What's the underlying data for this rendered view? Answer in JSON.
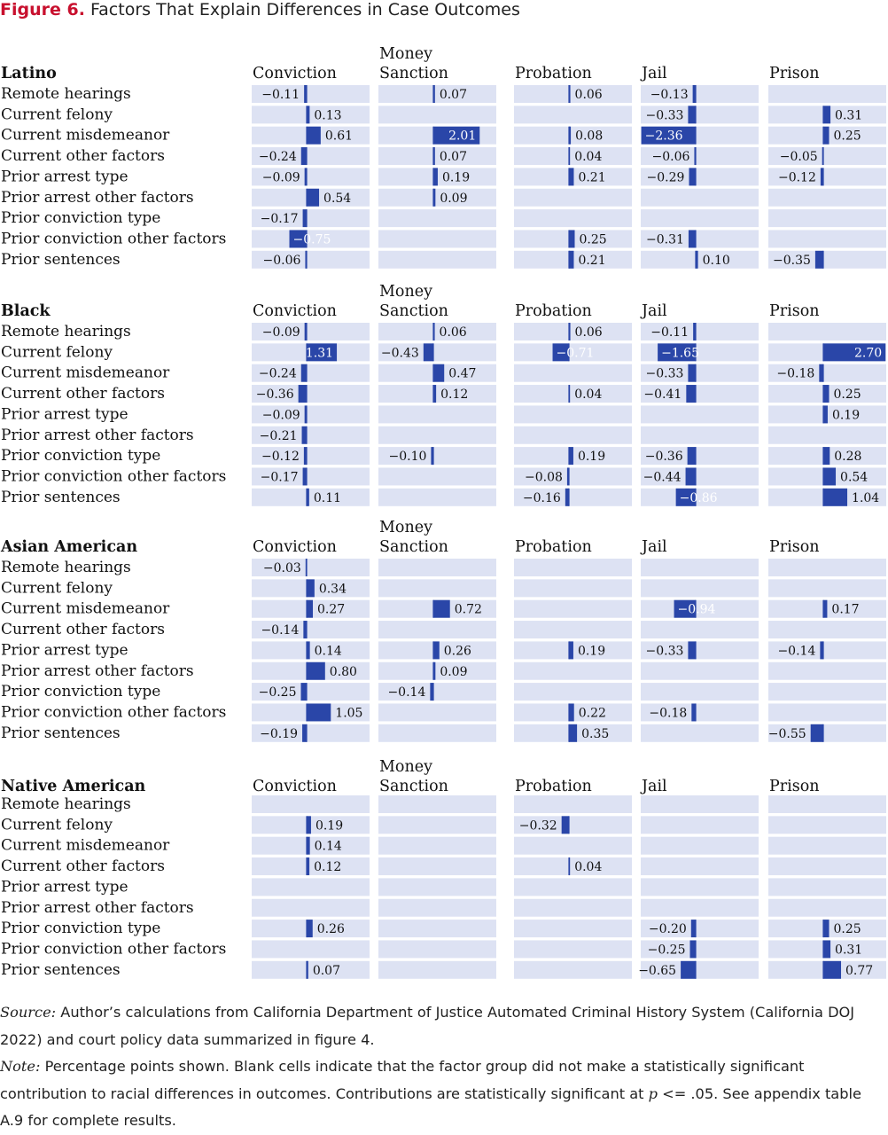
{
  "figure": {
    "label": "Figure 6.",
    "title": "Factors That Explain Differences in Case Outcomes"
  },
  "colors": {
    "bar": "#2a46a8",
    "cell": "#dde2f3",
    "title": "#c8102e",
    "zero_line": "#2a46a8"
  },
  "chart_data": {
    "type": "bar",
    "orientation": "horizontal",
    "units": "percentage points",
    "columns": [
      "Conviction",
      "Money Sanction",
      "Probation",
      "Jail",
      "Prison"
    ],
    "rows": [
      "Remote hearings",
      "Current felony",
      "Current misdemeanor",
      "Current other factors",
      "Prior arrest type",
      "Prior arrest other factors",
      "Prior conviction type",
      "Prior conviction other factors",
      "Prior sentences"
    ],
    "panels": [
      {
        "name": "Latino",
        "values": [
          [
            -0.11,
            0.07,
            0.06,
            -0.13,
            null
          ],
          [
            0.13,
            null,
            null,
            -0.33,
            0.31
          ],
          [
            0.61,
            2.01,
            0.08,
            -2.36,
            0.25
          ],
          [
            -0.24,
            0.07,
            0.04,
            -0.06,
            -0.05
          ],
          [
            -0.09,
            0.19,
            0.21,
            -0.29,
            -0.12
          ],
          [
            0.54,
            0.09,
            null,
            null,
            null
          ],
          [
            -0.17,
            null,
            null,
            null,
            null
          ],
          [
            -0.75,
            null,
            0.25,
            -0.31,
            null
          ],
          [
            -0.06,
            null,
            0.21,
            0.1,
            -0.35
          ]
        ]
      },
      {
        "name": "Black",
        "values": [
          [
            -0.09,
            0.06,
            0.06,
            -0.11,
            null
          ],
          [
            1.31,
            -0.43,
            -0.71,
            -1.65,
            2.7
          ],
          [
            -0.24,
            0.47,
            null,
            -0.33,
            -0.18
          ],
          [
            -0.36,
            0.12,
            0.04,
            -0.41,
            0.25
          ],
          [
            -0.09,
            null,
            null,
            null,
            0.19
          ],
          [
            -0.21,
            null,
            null,
            null,
            null
          ],
          [
            -0.12,
            -0.1,
            0.19,
            -0.36,
            0.28
          ],
          [
            -0.17,
            null,
            -0.08,
            -0.44,
            0.54
          ],
          [
            0.11,
            null,
            -0.16,
            -0.86,
            1.04
          ]
        ]
      },
      {
        "name": "Asian American",
        "values": [
          [
            -0.03,
            null,
            null,
            null,
            null
          ],
          [
            0.34,
            null,
            null,
            null,
            null
          ],
          [
            0.27,
            0.72,
            null,
            -0.94,
            0.17
          ],
          [
            -0.14,
            null,
            null,
            null,
            null
          ],
          [
            0.14,
            0.26,
            0.19,
            -0.33,
            -0.14
          ],
          [
            0.8,
            0.09,
            null,
            null,
            null
          ],
          [
            -0.25,
            -0.14,
            null,
            null,
            null
          ],
          [
            1.05,
            null,
            0.22,
            -0.18,
            null
          ],
          [
            -0.19,
            null,
            0.35,
            null,
            -0.55
          ]
        ]
      },
      {
        "name": "Native American",
        "values": [
          [
            null,
            null,
            null,
            null,
            null
          ],
          [
            0.19,
            null,
            -0.32,
            null,
            null
          ],
          [
            0.14,
            null,
            null,
            null,
            null
          ],
          [
            0.12,
            null,
            0.04,
            null,
            null
          ],
          [
            null,
            null,
            null,
            null,
            null
          ],
          [
            null,
            null,
            null,
            null,
            null
          ],
          [
            0.26,
            null,
            null,
            -0.2,
            0.25
          ],
          [
            null,
            null,
            null,
            -0.25,
            0.31
          ],
          [
            0.07,
            null,
            null,
            -0.65,
            0.77
          ]
        ]
      }
    ]
  },
  "footer": {
    "source_label": "Source:",
    "source_text": " Author’s calculations from California Department of Justice Automated Criminal History System (California DOJ 2022) and court policy data summarized in figure 4.",
    "note_label": "Note:",
    "note_text": " Percentage points shown. Blank cells indicate that the factor group did not make a statistically significant contribution to racial differences in outcomes. Contributions are statistically significant at ",
    "note_p": "p",
    "note_tail": " <= .05. See appendix table A.9 for complete results."
  }
}
